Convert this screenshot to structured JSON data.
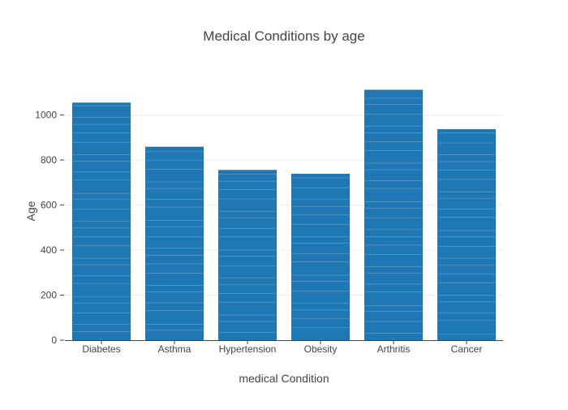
{
  "chart_data": {
    "type": "bar",
    "title": "Medical Conditions by age",
    "xlabel": "medical Condition",
    "ylabel": "Age",
    "categories": [
      "Diabetes",
      "Asthma",
      "Hypertension",
      "Obesity",
      "Arthritis",
      "Cancer"
    ],
    "values": [
      1055,
      859,
      756,
      739,
      1112,
      937
    ],
    "ylim": [
      0,
      1150
    ],
    "yticks": [
      0,
      200,
      400,
      600,
      800,
      1000
    ],
    "ytick_labels": [
      "0",
      "200",
      "400",
      "600",
      "800",
      "1000"
    ],
    "grid": true,
    "legend": "none",
    "colors": {
      "bar": "#1f77b4",
      "bar_segment_line": "#6a9fcd",
      "grid": "#eeeeee",
      "axis": "#444444",
      "text": "#444444"
    }
  }
}
